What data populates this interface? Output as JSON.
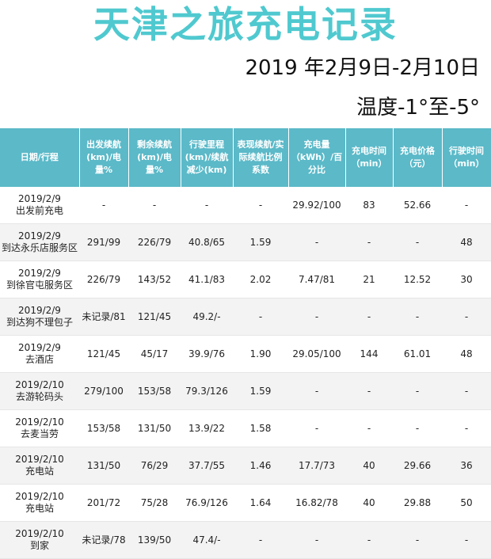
{
  "title": "天津之旅充电记录",
  "date_range": "2019 年2月9日-2月10日",
  "temperature": "温度-1°至-5°",
  "columns": [
    "日期/行程",
    "出发续航(km)/电量%",
    "剩余续航(km)/电量%",
    "行驶里程(km)/续航减少(km)",
    "表现续航/实际续航比例系数",
    "充电量（kWh）/百分比",
    "充电时间（min）",
    "充电价格（元）",
    "行驶时间（min）"
  ],
  "rows": [
    [
      "2019/2/9\n出发前充电",
      "-",
      "-",
      "-",
      "-",
      "29.92/100",
      "83",
      "52.66",
      "-"
    ],
    [
      "2019/2/9\n到达永乐店服务区",
      "291/99",
      "226/79",
      "40.8/65",
      "1.59",
      "-",
      "-",
      "-",
      "48"
    ],
    [
      "2019/2/9\n到徐官屯服务区",
      "226/79",
      "143/52",
      "41.1/83",
      "2.02",
      "7.47/81",
      "21",
      "12.52",
      "30"
    ],
    [
      "2019/2/9\n到达狗不理包子",
      "未记录/81",
      "121/45",
      "49.2/-",
      "-",
      "-",
      "-",
      "-",
      "-"
    ],
    [
      "2019/2/9\n去酒店",
      "121/45",
      "45/17",
      "39.9/76",
      "1.90",
      "29.05/100",
      "144",
      "61.01",
      "48"
    ],
    [
      "2019/2/10\n去游轮码头",
      "279/100",
      "153/58",
      "79.3/126",
      "1.59",
      "-",
      "-",
      "-",
      "-"
    ],
    [
      "2019/2/10\n去麦当劳",
      "153/58",
      "131/50",
      "13.9/22",
      "1.58",
      "-",
      "-",
      "-",
      "-"
    ],
    [
      "2019/2/10\n充电站",
      "131/50",
      "76/29",
      "37.7/55",
      "1.46",
      "17.7/73",
      "40",
      "29.66",
      "36"
    ],
    [
      "2019/2/10\n充电站",
      "201/72",
      "75/28",
      "76.9/126",
      "1.64",
      "16.82/78",
      "40",
      "29.88",
      "50"
    ],
    [
      "2019/2/10\n到家",
      "未记录/78",
      "139/50",
      "47.4/-",
      "-",
      "-",
      "-",
      "-",
      "-"
    ]
  ]
}
